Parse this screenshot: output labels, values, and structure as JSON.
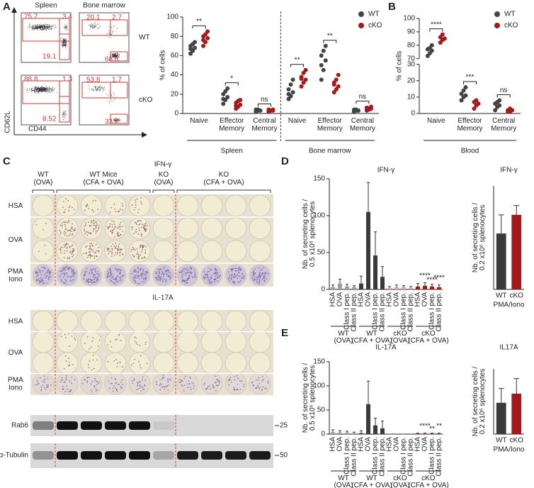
{
  "panel_labels": [
    "A",
    "B",
    "C",
    "D",
    "E"
  ],
  "flow": {
    "columns": [
      "Spleen",
      "Bone marrow"
    ],
    "rows": [
      "WT",
      "cKO"
    ],
    "ylabel": "CD62L",
    "xlabel": "CD44",
    "gates": [
      [
        [
          75.7,
          3.4,
          19.1
        ],
        [
          20.1,
          2.7,
          68.6
        ]
      ],
      [
        [
          88.8,
          1.3,
          8.52
        ],
        [
          53.8,
          1.7,
          33.2
        ]
      ]
    ]
  },
  "elispot": {
    "columns": [
      "WT (OVA)",
      "WT Mice (CFA + OVA)",
      "KO (OVA)",
      "KO (CFA + OVA)"
    ],
    "assays": [
      {
        "title": "IFN-γ",
        "rows": [
          "HSA",
          "OVA",
          "PMA Iono"
        ]
      },
      {
        "title": "IL-17A",
        "rows": [
          "HSA",
          "OVA",
          "PMA Iono"
        ]
      }
    ]
  },
  "blot": {
    "bands": [
      "Rab6",
      "α-Tubulin"
    ],
    "markers": [
      "25",
      "50"
    ]
  },
  "chart_data": [
    {
      "type": "dotplot",
      "ylabel": "% of cells",
      "ylim": [
        0,
        100
      ],
      "yticks": [
        0,
        20,
        40,
        60,
        80,
        100
      ],
      "groups": [
        {
          "name": "Spleen",
          "categories": [
            "Naive",
            "Effector Memory",
            "Central Memory"
          ]
        },
        {
          "name": "Bone marrow",
          "categories": [
            "Naive",
            "Effector Memory",
            "Central Memory"
          ]
        }
      ],
      "annotations": [
        "**",
        "*",
        "ns",
        "**",
        "**",
        "ns"
      ],
      "series": [
        {
          "name": "WT",
          "color": "#444444",
          "values": [
            [
              62,
              65,
              68,
              70,
              72,
              74,
              67
            ],
            [
              10,
              14,
              17,
              20,
              23,
              26,
              15
            ],
            [
              2,
              3,
              3,
              4,
              4,
              3,
              2
            ],
            [
              15,
              18,
              22,
              25,
              30,
              35,
              20
            ],
            [
              35,
              45,
              55,
              60,
              65,
              70,
              50
            ],
            [
              2,
              3,
              3,
              4,
              4,
              3,
              2
            ]
          ]
        },
        {
          "name": "cKO",
          "color": "#a31a1a",
          "values": [
            [
              70,
              74,
              78,
              80,
              82,
              85,
              76
            ],
            [
              5,
              7,
              9,
              11,
              13,
              14,
              8
            ],
            [
              2,
              3,
              3,
              4,
              3,
              4,
              2
            ],
            [
              28,
              32,
              35,
              38,
              42,
              45,
              36
            ],
            [
              22,
              25,
              28,
              30,
              35,
              40,
              32
            ],
            [
              3,
              4,
              5,
              6,
              5,
              7,
              4
            ]
          ]
        }
      ]
    },
    {
      "type": "dotplot",
      "ylabel": "% of cells",
      "ylim": [
        0,
        100
      ],
      "yticks": [
        0,
        10,
        20,
        30,
        70,
        80,
        90,
        100
      ],
      "ybreak": [
        30,
        70
      ],
      "groups": [
        {
          "name": "Blood",
          "categories": [
            "Naive",
            "Effector Memory",
            "Central Memory"
          ]
        }
      ],
      "annotations": [
        "****",
        "***",
        "ns"
      ],
      "series": [
        {
          "name": "WT",
          "color": "#444444",
          "values": [
            [
              72,
              74,
              76,
              77,
              78,
              80
            ],
            [
              8,
              10,
              11,
              12,
              14,
              16
            ],
            [
              2,
              4,
              5,
              6,
              7,
              8
            ]
          ]
        },
        {
          "name": "cKO",
          "color": "#a31a1a",
          "values": [
            [
              82,
              84,
              85,
              86,
              88
            ],
            [
              3,
              5,
              6,
              7,
              8
            ],
            [
              1,
              1,
              2,
              2,
              3
            ]
          ]
        }
      ]
    },
    {
      "type": "bar",
      "title": "IFN-γ",
      "ylabel": "Nb. of secreting cells / 0.5 x10⁶ splenocytes",
      "ylim": [
        0,
        150
      ],
      "yticks": [
        0,
        50,
        100,
        150
      ],
      "groups": [
        {
          "name": "WT (OVA)",
          "color": "#9e9e9e",
          "categories": [
            "HSA",
            "OVA",
            "Class I pep.",
            "Class II pep."
          ],
          "values": [
            3,
            8,
            4,
            3
          ],
          "errors": [
            3,
            6,
            3,
            2
          ]
        },
        {
          "name": "WT (CFA + OVA)",
          "color": "#3a3a3a",
          "categories": [
            "HSA",
            "OVA",
            "Class I pep.",
            "Class II pep."
          ],
          "values": [
            8,
            105,
            46,
            17
          ],
          "errors": [
            10,
            40,
            32,
            14
          ]
        },
        {
          "name": "cKO (OVA)",
          "color": "#e8a0a0",
          "categories": [
            "HSA",
            "OVA",
            "Class I pep.",
            "Class II pep."
          ],
          "values": [
            2,
            3,
            3,
            2
          ],
          "errors": [
            2,
            3,
            2,
            2
          ]
        },
        {
          "name": "cKO (CFA + OVA)",
          "color": "#a31a1a",
          "categories": [
            "HSA",
            "OVA",
            "Class I pep.",
            "Class II pep."
          ],
          "values": [
            4,
            5,
            4,
            3
          ],
          "errors": [
            4,
            4,
            3,
            3
          ]
        }
      ],
      "annotations": [
        null,
        null,
        null,
        null,
        null,
        null,
        null,
        null,
        null,
        null,
        null,
        null,
        null,
        "****",
        "****",
        "****"
      ]
    },
    {
      "type": "bar",
      "title": "IFN-γ",
      "ylabel": "Nb. of secreting cells / 0.2 x10⁶ splenocytes",
      "xlabel": "PMA/Iono",
      "ylim": [
        0,
        500
      ],
      "categories": [
        "WT",
        "cKO"
      ],
      "colors": [
        "#3a3a3a",
        "#a31a1a"
      ],
      "values": [
        270,
        360
      ],
      "errors": [
        90,
        45
      ]
    },
    {
      "type": "bar",
      "title": "IL-17A",
      "ylabel": "Nb. of secreting cells / 0.5 x10⁶ splenocytes",
      "ylim": [
        0,
        150
      ],
      "yticks": [
        0,
        50,
        100,
        150
      ],
      "groups": [
        {
          "name": "WT (OVA)",
          "color": "#9e9e9e",
          "categories": [
            "HSA",
            "OVA",
            "Class I pep.",
            "Class II pep."
          ],
          "values": [
            4,
            3,
            3,
            2
          ],
          "errors": [
            5,
            4,
            3,
            2
          ]
        },
        {
          "name": "WT (CFA + OVA)",
          "color": "#3a3a3a",
          "categories": [
            "HSA",
            "OVA",
            "Class I pep.",
            "Class II pep."
          ],
          "values": [
            2,
            62,
            18,
            12
          ],
          "errors": [
            5,
            48,
            15,
            15
          ]
        },
        {
          "name": "cKO (OVA)",
          "color": "#e8a0a0",
          "categories": [
            "HSA",
            "OVA",
            "Class I pep.",
            "Class II pep."
          ],
          "values": [
            0,
            0,
            0,
            0
          ],
          "errors": [
            0,
            0,
            0,
            0
          ]
        },
        {
          "name": "cKO (CFA + OVA)",
          "color": "#a31a1a",
          "categories": [
            "HSA",
            "OVA",
            "Class I pep.",
            "Class II pep."
          ],
          "values": [
            1,
            1,
            1,
            1
          ],
          "errors": [
            1,
            1,
            1,
            1
          ]
        }
      ],
      "annotations": [
        null,
        null,
        null,
        null,
        null,
        null,
        null,
        null,
        null,
        null,
        null,
        null,
        null,
        "****",
        "**",
        "**"
      ]
    },
    {
      "type": "bar",
      "title": "IL17A",
      "ylabel": "Nb. of secreting cells / 0.2 x10⁶ splenocytes",
      "xlabel": "PMA/Iono",
      "ylim": [
        0,
        100
      ],
      "categories": [
        "WT",
        "cKO"
      ],
      "colors": [
        "#3a3a3a",
        "#a31a1a"
      ],
      "values": [
        48,
        62
      ],
      "errors": [
        22,
        23
      ]
    }
  ]
}
